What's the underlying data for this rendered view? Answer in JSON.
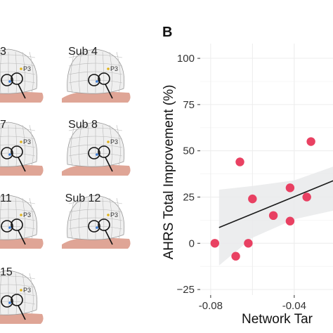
{
  "panel_b_label": "B",
  "subjects": [
    {
      "label": "3"
    },
    {
      "label": "Sub 4"
    },
    {
      "label": "7"
    },
    {
      "label": "Sub 8"
    },
    {
      "label": "11"
    },
    {
      "label": "Sub 12"
    },
    {
      "label": "15"
    }
  ],
  "electrode_label": "P3",
  "colors": {
    "points": "#e8375a",
    "ci_band": "#e9eaeb",
    "fit_line": "#1a1a1a",
    "panel_bg": "#ffffff",
    "grid": "#ececec",
    "scalp_fill": "#efefef",
    "shoulder": "#dfa596"
  },
  "chart_data": {
    "type": "scatter",
    "title": "",
    "xlabel": "Network Tar",
    "ylabel": "AHRS Total Improvement (%)",
    "xlim": [
      -0.085,
      -0.008
    ],
    "ylim": [
      -28,
      108
    ],
    "x_ticks": [
      -0.08,
      -0.04
    ],
    "x_tick_labels": [
      "-0.08",
      "-0.04"
    ],
    "x_minor_ticks": [
      -0.06,
      -0.02
    ],
    "y_ticks": [
      -25,
      0,
      25,
      50,
      75,
      100
    ],
    "y_tick_labels": [
      "−25",
      "0",
      "25",
      "50",
      "75",
      "100"
    ],
    "grid": true,
    "points": [
      {
        "x": -0.078,
        "y": 0
      },
      {
        "x": -0.068,
        "y": -7
      },
      {
        "x": -0.066,
        "y": 44
      },
      {
        "x": -0.062,
        "y": 0
      },
      {
        "x": -0.06,
        "y": 24
      },
      {
        "x": -0.05,
        "y": 15
      },
      {
        "x": -0.042,
        "y": 30
      },
      {
        "x": -0.042,
        "y": 12
      },
      {
        "x": -0.034,
        "y": 25
      },
      {
        "x": -0.032,
        "y": 55
      }
    ],
    "fit_line": {
      "x": [
        -0.076,
        -0.008
      ],
      "y": [
        8.5,
        40
      ]
    },
    "ci_band": {
      "x": [
        -0.076,
        -0.06,
        -0.04,
        -0.02,
        -0.008
      ],
      "upper": [
        29,
        31,
        34,
        42,
        52
      ],
      "lower": [
        -12,
        3,
        13,
        18,
        22
      ]
    }
  }
}
